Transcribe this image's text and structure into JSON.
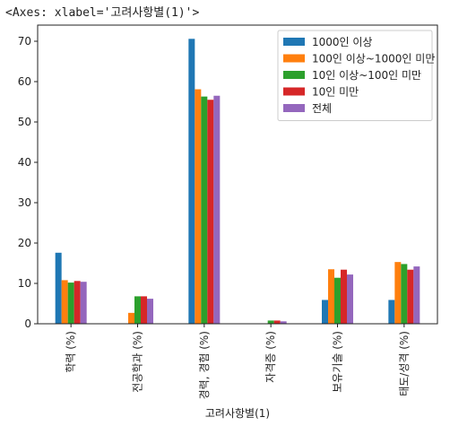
{
  "header": {
    "repr": "<Axes: xlabel='고려사항별(1)'>"
  },
  "colors": {
    "series": [
      "#1f77b4",
      "#ff7f0e",
      "#2ca02c",
      "#d62728",
      "#9467bd"
    ]
  },
  "chart_data": {
    "type": "bar",
    "title": "",
    "xlabel": "고려사항별(1)",
    "ylabel": "",
    "ylim": [
      0,
      74
    ],
    "yticks": [
      0,
      10,
      20,
      30,
      40,
      50,
      60,
      70
    ],
    "grid": false,
    "legend_position": "top-right",
    "categories": [
      "학력 (%)",
      "전공학과 (%)",
      "경력, 경험 (%)",
      "자격증 (%)",
      "보유기술 (%)",
      "태도/성격 (%)"
    ],
    "series": [
      {
        "name": "1000인 이상",
        "values": [
          17.6,
          0.0,
          70.6,
          0.0,
          5.9,
          5.9
        ]
      },
      {
        "name": "100인 이상~1000인 미만",
        "values": [
          10.8,
          2.7,
          58.1,
          0.0,
          13.5,
          15.3
        ]
      },
      {
        "name": "10인 이상~100인 미만",
        "values": [
          10.2,
          6.8,
          56.3,
          0.8,
          11.4,
          14.8
        ]
      },
      {
        "name": "10인 미만",
        "values": [
          10.6,
          6.8,
          55.5,
          0.8,
          13.4,
          13.4
        ]
      },
      {
        "name": "전체",
        "values": [
          10.4,
          6.2,
          56.5,
          0.6,
          12.2,
          14.2
        ]
      }
    ]
  }
}
